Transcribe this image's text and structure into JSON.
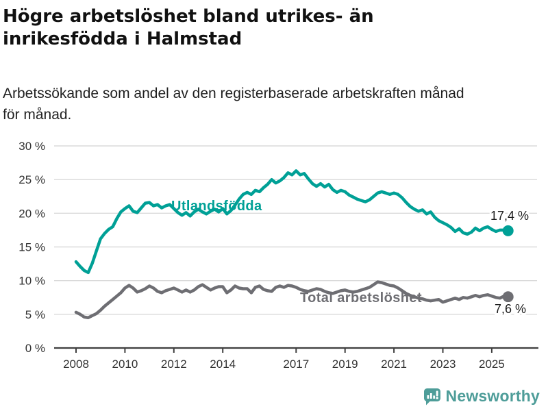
{
  "header": {
    "title_lines": [
      "Högre arbetslöshet bland utrikes- än",
      "inrikesfödda i Halmstad"
    ],
    "subtitle_lines": [
      "Arbetssökande som andel av den registerbaserade arbetskraften månad",
      "för månad."
    ]
  },
  "chart_data": {
    "type": "line",
    "title": "Högre arbetslöshet bland utrikes- än inrikesfödda i Halmstad",
    "subtitle": "Arbetssökande som andel av den registerbaserade arbetskraften månad för månad.",
    "x_start_year": 2008,
    "x_step_months": 2,
    "xticks": [
      2008,
      2010,
      2012,
      2014,
      2017,
      2019,
      2021,
      2023,
      2025
    ],
    "yticks": [
      0,
      5,
      10,
      15,
      20,
      25,
      30
    ],
    "ytick_labels": [
      "0 %",
      "5 %",
      "10 %",
      "15 %",
      "20 %",
      "25 %",
      "30 %"
    ],
    "ylim": [
      0,
      30
    ],
    "grid": true,
    "legend": "inline-labels",
    "colors": {
      "utlandsfodda": "#00A096",
      "total": "#6E6E73",
      "gridline": "#DADADA",
      "axis": "#3F3F3F",
      "tick_text": "#333333",
      "value_label": "#1A1A1A"
    },
    "series": [
      {
        "name": "Utlandsfödda",
        "color": "#00A096",
        "end_label": "17,4 %",
        "values": [
          12.8,
          12.1,
          11.5,
          11.2,
          12.6,
          14.4,
          16.2,
          17.0,
          17.6,
          18.0,
          19.2,
          20.2,
          20.7,
          21.1,
          20.3,
          20.1,
          20.8,
          21.5,
          21.6,
          21.1,
          21.3,
          20.8,
          21.1,
          21.3,
          20.7,
          20.1,
          19.7,
          20.1,
          19.6,
          20.2,
          20.6,
          20.2,
          19.9,
          20.3,
          20.6,
          20.2,
          20.7,
          19.9,
          20.4,
          21.2,
          22.1,
          22.8,
          23.1,
          22.8,
          23.4,
          23.2,
          23.8,
          24.3,
          25.0,
          24.5,
          24.8,
          25.3,
          26.0,
          25.7,
          26.3,
          25.7,
          25.9,
          25.1,
          24.4,
          24.0,
          24.4,
          23.9,
          24.3,
          23.5,
          23.1,
          23.4,
          23.2,
          22.7,
          22.4,
          22.1,
          21.9,
          21.7,
          22.0,
          22.5,
          23.0,
          23.2,
          23.0,
          22.8,
          23.0,
          22.8,
          22.3,
          21.6,
          21.0,
          20.6,
          20.3,
          20.5,
          19.9,
          20.2,
          19.4,
          18.9,
          18.6,
          18.3,
          17.9,
          17.3,
          17.7,
          17.1,
          16.9,
          17.2,
          17.8,
          17.4,
          17.8,
          18.0,
          17.6,
          17.3,
          17.5,
          17.5,
          17.4
        ]
      },
      {
        "name": "Total arbetslöshet",
        "color": "#6E6E73",
        "end_label": "7,6 %",
        "values": [
          5.3,
          5.0,
          4.6,
          4.5,
          4.8,
          5.1,
          5.6,
          6.2,
          6.7,
          7.2,
          7.7,
          8.2,
          8.9,
          9.3,
          8.9,
          8.3,
          8.5,
          8.8,
          9.2,
          8.9,
          8.4,
          8.2,
          8.5,
          8.7,
          8.9,
          8.6,
          8.3,
          8.6,
          8.3,
          8.6,
          9.1,
          9.4,
          9.0,
          8.6,
          8.9,
          9.1,
          9.1,
          8.2,
          8.6,
          9.2,
          8.9,
          8.8,
          8.8,
          8.2,
          9.0,
          9.2,
          8.7,
          8.5,
          8.4,
          9.0,
          9.2,
          9.0,
          9.3,
          9.2,
          9.0,
          8.7,
          8.5,
          8.4,
          8.6,
          8.8,
          8.7,
          8.4,
          8.2,
          8.1,
          8.3,
          8.5,
          8.6,
          8.4,
          8.3,
          8.4,
          8.6,
          8.8,
          9.0,
          9.4,
          9.8,
          9.7,
          9.5,
          9.3,
          9.2,
          8.9,
          8.5,
          8.1,
          7.8,
          7.6,
          7.4,
          7.3,
          7.1,
          7.0,
          7.1,
          7.2,
          6.8,
          7.0,
          7.2,
          7.4,
          7.2,
          7.5,
          7.4,
          7.6,
          7.8,
          7.6,
          7.8,
          7.9,
          7.7,
          7.5,
          7.4,
          7.7,
          7.6
        ]
      }
    ]
  },
  "footer": {
    "brand": "Newsworthy",
    "brand_color": "#4E9D99",
    "logo_icon": "newsworthy-bubble-barchart-icon"
  }
}
